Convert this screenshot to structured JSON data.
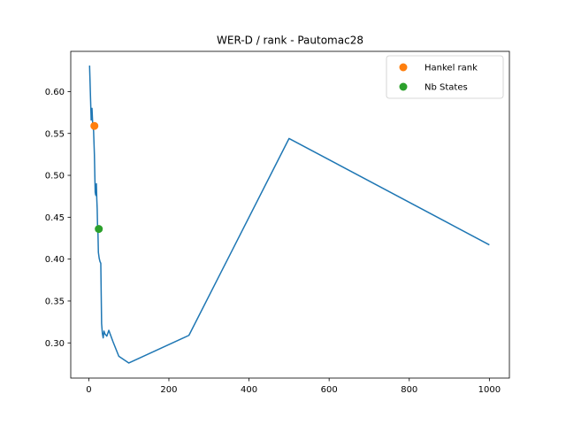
{
  "chart_data": {
    "type": "line",
    "title": "WER-D / rank - Pautomac28",
    "xlabel": "",
    "ylabel": "",
    "xlim": [
      -45,
      1050
    ],
    "ylim": [
      0.258,
      0.648
    ],
    "x_ticks": [
      0,
      200,
      400,
      600,
      800,
      1000
    ],
    "x_tick_labels": [
      "0",
      "200",
      "400",
      "600",
      "800",
      "1000"
    ],
    "y_ticks": [
      0.3,
      0.35,
      0.4,
      0.45,
      0.5,
      0.55,
      0.6
    ],
    "y_tick_labels": [
      "0.30",
      "0.35",
      "0.40",
      "0.45",
      "0.50",
      "0.55",
      "0.60"
    ],
    "grid": false,
    "legend_position": "upper right",
    "series": [
      {
        "color": "#1f77b4",
        "kind": "line",
        "x": [
          2,
          4,
          6,
          8,
          10,
          12,
          14,
          16,
          17,
          18,
          19,
          20,
          21,
          22,
          23,
          24,
          26,
          28,
          30,
          32,
          34,
          36,
          38,
          40,
          45,
          50,
          60,
          75,
          100,
          250,
          500,
          1000
        ],
        "y": [
          0.631,
          0.598,
          0.566,
          0.58,
          0.559,
          0.553,
          0.525,
          0.48,
          0.477,
          0.476,
          0.49,
          0.472,
          0.46,
          0.437,
          0.43,
          0.408,
          0.401,
          0.397,
          0.395,
          0.323,
          0.311,
          0.306,
          0.314,
          0.311,
          0.308,
          0.315,
          0.302,
          0.284,
          0.276,
          0.309,
          0.544,
          0.417
        ]
      },
      {
        "name": "Hankel rank",
        "color": "#ff7f0e",
        "kind": "point",
        "x": [
          14
        ],
        "y": [
          0.559
        ]
      },
      {
        "name": "Nb States",
        "color": "#2ca02c",
        "kind": "point",
        "x": [
          25
        ],
        "y": [
          0.436
        ]
      }
    ]
  }
}
